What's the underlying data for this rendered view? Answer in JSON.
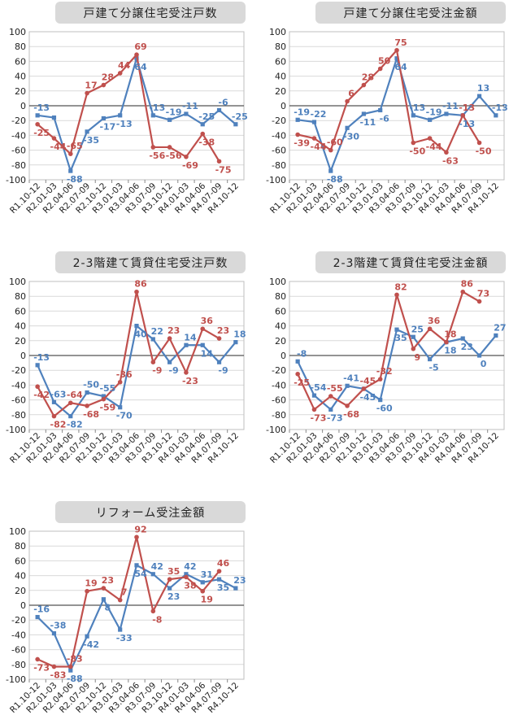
{
  "colors": {
    "blue": "#4f81bd",
    "red": "#c0504d",
    "grid": "#d9d9d9",
    "axis": "#555555",
    "title_bg": "#d9d9d9"
  },
  "chart_data": [
    {
      "type": "line",
      "title": "戸建て分譲住宅受注戸数",
      "categories": [
        "R1.10-12",
        "R2.01-03",
        "R2.04-06",
        "R2.07-09",
        "R2.10-12",
        "R3.01-03",
        "R3.04-06",
        "R3.07-09",
        "R3.10-12",
        "R4.01-03",
        "R4.04-06",
        "R4.07-09",
        "R4.10-12"
      ],
      "ylim": [
        -100,
        100
      ],
      "yticks": [
        "100",
        "80",
        "60",
        "40",
        "20",
        "0",
        "-20",
        "-40",
        "-60",
        "-80",
        "-100"
      ],
      "grid": true,
      "series": [
        {
          "color": "blue",
          "values": [
            -13,
            -16,
            -88,
            -35,
            -17,
            -13,
            64,
            -13,
            -19,
            -11,
            -25,
            -6,
            -25
          ],
          "labels": [
            "-13",
            null,
            "-88",
            "-35",
            "-17",
            "-13",
            "64",
            "-13",
            "-19",
            "-11",
            "-25",
            "-6",
            "-25"
          ]
        },
        {
          "color": "red",
          "values": [
            -25,
            -44,
            -65,
            17,
            28,
            44,
            69,
            -56,
            -56,
            -69,
            -38,
            -75,
            null
          ],
          "labels": [
            "-25",
            "-44",
            "-65",
            "17",
            "28",
            "44",
            "69",
            "-56",
            "-56",
            "-69",
            "-38",
            "-75",
            null
          ]
        }
      ]
    },
    {
      "type": "line",
      "title": "戸建て分譲住宅受注金額",
      "categories": [
        "R1.10-12",
        "R2.01-03",
        "R2.04-06",
        "R2.07-09",
        "R2.10-12",
        "R3.01-03",
        "R3.04-06",
        "R3.07-09",
        "R3.10-12",
        "R4.01-03",
        "R4.04-06",
        "R4.07-09",
        "R4.10-12"
      ],
      "ylim": [
        -100,
        100
      ],
      "yticks": [
        "100",
        "80",
        "60",
        "40",
        "20",
        "0",
        "-20",
        "-40",
        "-60",
        "-80",
        "-100"
      ],
      "grid": true,
      "series": [
        {
          "color": "blue",
          "values": [
            -19,
            -22,
            -88,
            -30,
            -11,
            -6,
            64,
            -13,
            -19,
            -11,
            -13,
            13,
            -13
          ],
          "labels": [
            "-19",
            "-22",
            "-88",
            "-30",
            "-11",
            "-6",
            "64",
            "-13",
            "-19",
            "-11",
            "-13",
            "13",
            "-13"
          ]
        },
        {
          "color": "red",
          "values": [
            -39,
            -44,
            -60,
            6,
            28,
            50,
            75,
            -50,
            -44,
            -63,
            -13,
            -50,
            null
          ],
          "labels": [
            "-39",
            "-44",
            "-60",
            "6",
            "28",
            "50",
            "75",
            "-50",
            "-44",
            "-63",
            "-13",
            "-50",
            null
          ]
        }
      ]
    },
    {
      "type": "line",
      "title": "2-3階建て賃貸住宅受注戸数",
      "categories": [
        "R1.10-12",
        "R2.01-03",
        "R2.04-06",
        "R2.07-09",
        "R2.10-12",
        "R3.01-03",
        "R3.04-06",
        "R3.07-09",
        "R3.10-12",
        "R4.01-03",
        "R4.04-06",
        "R4.07-09",
        "R4.10-12"
      ],
      "ylim": [
        -100,
        100
      ],
      "yticks": [
        "100",
        "80",
        "60",
        "40",
        "20",
        "0",
        "-20",
        "-40",
        "-60",
        "-80",
        "-100"
      ],
      "grid": true,
      "series": [
        {
          "color": "blue",
          "values": [
            -13,
            -63,
            -82,
            -50,
            -55,
            -70,
            40,
            22,
            -9,
            14,
            14,
            -9,
            18
          ],
          "labels": [
            "-13",
            "-63",
            "-82",
            "-50",
            "-55",
            "-70",
            "40",
            "22",
            "-9",
            "14",
            "14",
            "-9",
            "18"
          ]
        },
        {
          "color": "red",
          "values": [
            -42,
            -82,
            -64,
            -68,
            -59,
            -36,
            86,
            -9,
            23,
            -23,
            36,
            23,
            null
          ],
          "labels": [
            "-42",
            "-82",
            "-64",
            "-68",
            "-59",
            "-36",
            "86",
            "-9",
            "23",
            "-23",
            "36",
            "23",
            null
          ]
        }
      ]
    },
    {
      "type": "line",
      "title": "2-3階建て賃貸住宅受注金額",
      "categories": [
        "R1.10-12",
        "R2.01-03",
        "R2.04-06",
        "R2.07-09",
        "R2.10-12",
        "R3.01-03",
        "R3.04-06",
        "R3.07-09",
        "R3.10-12",
        "R4.01-03",
        "R4.04-06",
        "R4.07-09",
        "R4.10-12"
      ],
      "ylim": [
        -100,
        100
      ],
      "yticks": [
        "100",
        "80",
        "60",
        "40",
        "20",
        "0",
        "-20",
        "-40",
        "-60",
        "-80",
        "-100"
      ],
      "grid": true,
      "series": [
        {
          "color": "blue",
          "values": [
            -8,
            -54,
            -73,
            -41,
            -45,
            -60,
            35,
            25,
            -5,
            18,
            23,
            0,
            27
          ],
          "labels": [
            "-8",
            "-54",
            "-73",
            "-41",
            "-45",
            "-60",
            "35",
            "25",
            "-5",
            "18",
            "23",
            "0",
            "27"
          ]
        },
        {
          "color": "red",
          "values": [
            -25,
            -73,
            -55,
            -68,
            -45,
            -32,
            82,
            9,
            36,
            18,
            86,
            73,
            null
          ],
          "labels": [
            "-25",
            "-73",
            "-55",
            "-68",
            "-45",
            "-32",
            "82",
            "9",
            "36",
            "18",
            "86",
            "73",
            null
          ]
        }
      ]
    },
    {
      "type": "line",
      "title": "リフォーム受注金額",
      "categories": [
        "R1.10-12",
        "R2.01-03",
        "R2.04-06",
        "R2.07-09",
        "R2.10-12",
        "R3.01-03",
        "R3.04-06",
        "R3.07-09",
        "R3.10-12",
        "R4.01-03",
        "R4.04-06",
        "R4.07-09",
        "R4.10-12"
      ],
      "ylim": [
        -100,
        100
      ],
      "yticks": [
        "100",
        "80",
        "60",
        "40",
        "20",
        "0",
        "-20",
        "-40",
        "-60",
        "-80",
        "-100"
      ],
      "grid": true,
      "series": [
        {
          "color": "blue",
          "values": [
            -16,
            -38,
            -88,
            -42,
            8,
            -33,
            54,
            42,
            23,
            42,
            31,
            35,
            23
          ],
          "labels": [
            "-16",
            "-38",
            "-88",
            "-42",
            "8",
            "-33",
            "54",
            "42",
            "23",
            "42",
            "31",
            "35",
            "23"
          ]
        },
        {
          "color": "red",
          "values": [
            -73,
            -83,
            -83,
            19,
            23,
            7,
            92,
            -8,
            35,
            38,
            19,
            46,
            null
          ],
          "labels": [
            "-73",
            "-83",
            "-83",
            "19",
            "23",
            "7",
            "92",
            "-8",
            "35",
            "38",
            "19",
            "46",
            null
          ]
        }
      ]
    }
  ]
}
